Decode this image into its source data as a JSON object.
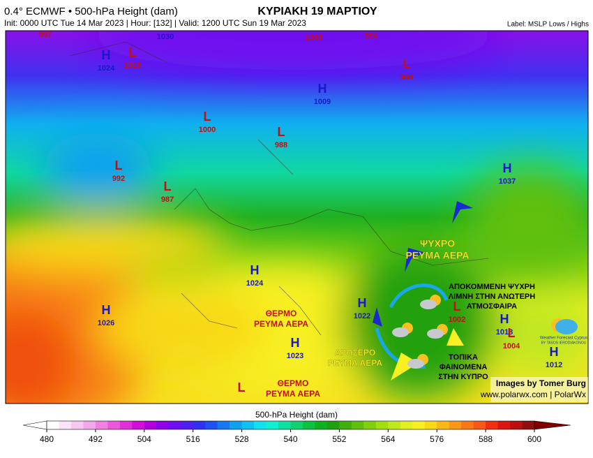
{
  "header": {
    "product": "0.4° ECMWF • 500-hPa Height (dam)",
    "title": "ΚΥΡΙΑΚΗ 19 ΜΑΡΤΙΟΥ",
    "info": "Init: 0000 UTC Tue 14 Mar 2023 | Hour: [132] | Valid: 1200 UTC Sun 19 Mar 2023",
    "label_note": "Label: MSLP Lows / Highs"
  },
  "pressure_systems": [
    {
      "value": 997
    },
    {
      "value": 1030
    },
    {
      "value": 1000
    },
    {
      "value": 994
    },
    {
      "letter": "H",
      "value": 1024
    },
    {
      "letter": "L",
      "value": 1018
    },
    {
      "letter": "H",
      "value": 1009
    },
    {
      "letter": "L",
      "value": 994
    },
    {
      "letter": "L",
      "value": 1000
    },
    {
      "letter": "L",
      "value": 988
    },
    {
      "letter": "L",
      "value": 992
    },
    {
      "letter": "L",
      "value": 987
    },
    {
      "letter": "H",
      "value": 1037
    },
    {
      "letter": "H",
      "value": 1024
    },
    {
      "letter": "H",
      "value": 1026
    },
    {
      "letter": "H",
      "value": 1022
    },
    {
      "letter": "L",
      "value": 1002
    },
    {
      "letter": "H",
      "value": 1018
    },
    {
      "letter": "L",
      "value": 1004
    },
    {
      "letter": "H",
      "value": 1023
    },
    {
      "letter": "H",
      "value": 1012
    },
    {
      "letter": "L"
    }
  ],
  "annotations": [
    {
      "lines": [
        "ΨΥΧΡΟ",
        "ΡΕΥΜΑ ΑΕΡΑ"
      ]
    },
    {
      "lines": [
        "ΑΠΟΚΟΜΜΕΝΗ ΨΥΧΡΗ",
        "ΛΙΜΝΗ ΣΤΗΝ ΑΝΩΤΕΡΗ",
        "ΑΤΜΟΣΦΑΙΡΑ"
      ]
    },
    {
      "lines": [
        "ΘΕΡΜΟ",
        "ΡΕΥΜΑ ΑΕΡΑ"
      ]
    },
    {
      "lines": [
        "ΔΡΟΣΕΡΟ",
        "ΡΕΥΜΑ ΑΕΡΑ"
      ]
    },
    {
      "lines": [
        "ΤΟΠΙΚΑ",
        "ΦΑΙΝΟΜΕΝΑ",
        "ΣΤΗΝ ΚΥΠΡΟ"
      ]
    },
    {
      "lines": [
        "ΘΕΡΜΟ",
        "ΡΕΥΜΑ ΑΕΡΑ"
      ]
    }
  ],
  "credits": {
    "images": "Images by Tomer Burg",
    "site": "www.polarwx.com | PolarWx",
    "logo_name": "Weather Forecast Cyprus",
    "logo_author": "BY TASOS IERODIAKONOU"
  },
  "colorbar": {
    "label": "500-hPa Height (dam)",
    "ticks": [
      480,
      492,
      504,
      516,
      528,
      540,
      552,
      564,
      576,
      588,
      600
    ],
    "colors": [
      "#ffffff",
      "#fce4f8",
      "#f8c8f0",
      "#f4a8ec",
      "#f080e4",
      "#ec58dc",
      "#e030d8",
      "#d010d8",
      "#b000e0",
      "#9000e8",
      "#7010f0",
      "#5020f0",
      "#3030f0",
      "#2050f0",
      "#1878f0",
      "#10a0f0",
      "#10c0f0",
      "#10e0f0",
      "#10f0d0",
      "#10e0a0",
      "#10d070",
      "#10c040",
      "#10b020",
      "#20a010",
      "#40b010",
      "#60c010",
      "#80d010",
      "#a0e010",
      "#c0e820",
      "#e0f020",
      "#f8f020",
      "#f8d818",
      "#f8b818",
      "#f89818",
      "#f87818",
      "#f85818",
      "#f03010",
      "#d81810",
      "#b81010",
      "#901010"
    ]
  }
}
